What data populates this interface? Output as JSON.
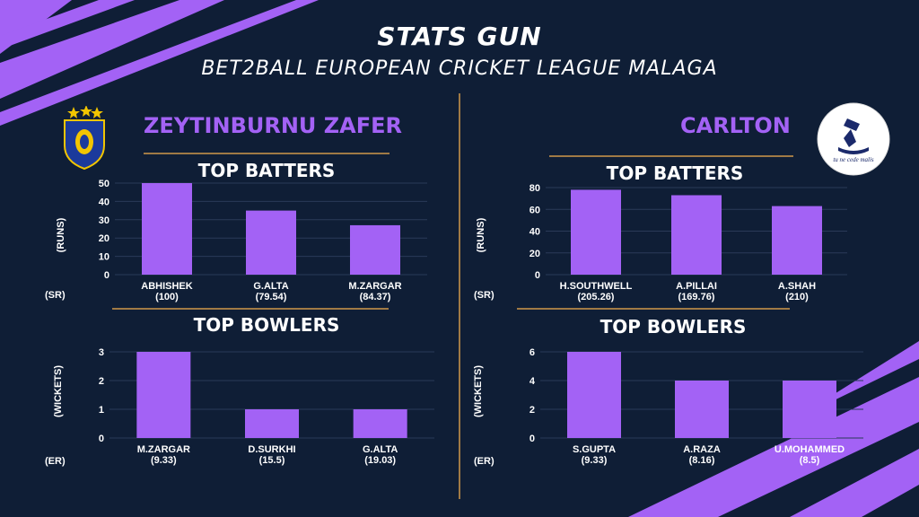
{
  "header": {
    "title": "STATS GUN",
    "subtitle": "BET2BALL EUROPEAN CRICKET LEAGUE MALAGA"
  },
  "teams": [
    {
      "name": "ZEYTINBURNU ZAFER",
      "batting": {
        "section_title": "TOP BATTERS",
        "y_label": "(RUNS)",
        "sub_label": "(SR)"
      },
      "bowling": {
        "section_title": "TOP BOWLERS",
        "y_label": "(WICKETS)",
        "sub_label": "(ER)"
      }
    },
    {
      "name": "CARLTON",
      "logo_text": "tu ne cede malis",
      "batting": {
        "section_title": "TOP BATTERS",
        "y_label": "(RUNS)",
        "sub_label": "(SR)"
      },
      "bowling": {
        "section_title": "TOP BOWLERS",
        "y_label": "(WICKETS)",
        "sub_label": "(ER)"
      }
    }
  ],
  "colors": {
    "background": "#0f1e36",
    "accent": "#a362f5",
    "gold": "#a07a45",
    "bar": "#a362f5"
  },
  "chart_data": [
    {
      "type": "bar",
      "title": "TOP BATTERS",
      "ylabel": "(RUNS)",
      "ylim": [
        0,
        50
      ],
      "yticks": [
        0,
        10,
        20,
        30,
        40,
        50
      ],
      "categories": [
        "ABHISHEK",
        "G.ALTA",
        "M.ZARGAR"
      ],
      "secondary_labels": [
        "(100)",
        "(79.54)",
        "(84.37)"
      ],
      "values": [
        50,
        35,
        27
      ],
      "grid": true
    },
    {
      "type": "bar",
      "title": "TOP BOWLERS",
      "ylabel": "(WICKETS)",
      "ylim": [
        0,
        3
      ],
      "yticks": [
        0,
        1,
        2,
        3
      ],
      "categories": [
        "M.ZARGAR",
        "D.SURKHI",
        "G.ALTA"
      ],
      "secondary_labels": [
        "(9.33)",
        "(15.5)",
        "(19.03)"
      ],
      "values": [
        3,
        1,
        1
      ],
      "grid": true
    },
    {
      "type": "bar",
      "title": "TOP BATTERS",
      "ylabel": "(RUNS)",
      "ylim": [
        0,
        80
      ],
      "yticks": [
        0,
        20,
        40,
        60,
        80
      ],
      "categories": [
        "H.SOUTHWELL",
        "A.PILLAI",
        "A.SHAH"
      ],
      "secondary_labels": [
        "(205.26)",
        "(169.76)",
        "(210)"
      ],
      "values": [
        78,
        73,
        63
      ],
      "grid": true
    },
    {
      "type": "bar",
      "title": "TOP BOWLERS",
      "ylabel": "(WICKETS)",
      "ylim": [
        0,
        6
      ],
      "yticks": [
        0,
        2,
        4,
        6
      ],
      "categories": [
        "S.GUPTA",
        "A.RAZA",
        "U.MOHAMMED"
      ],
      "secondary_labels": [
        "(9.33)",
        "(8.16)",
        "(8.5)"
      ],
      "values": [
        6,
        4,
        4
      ],
      "grid": true
    }
  ]
}
